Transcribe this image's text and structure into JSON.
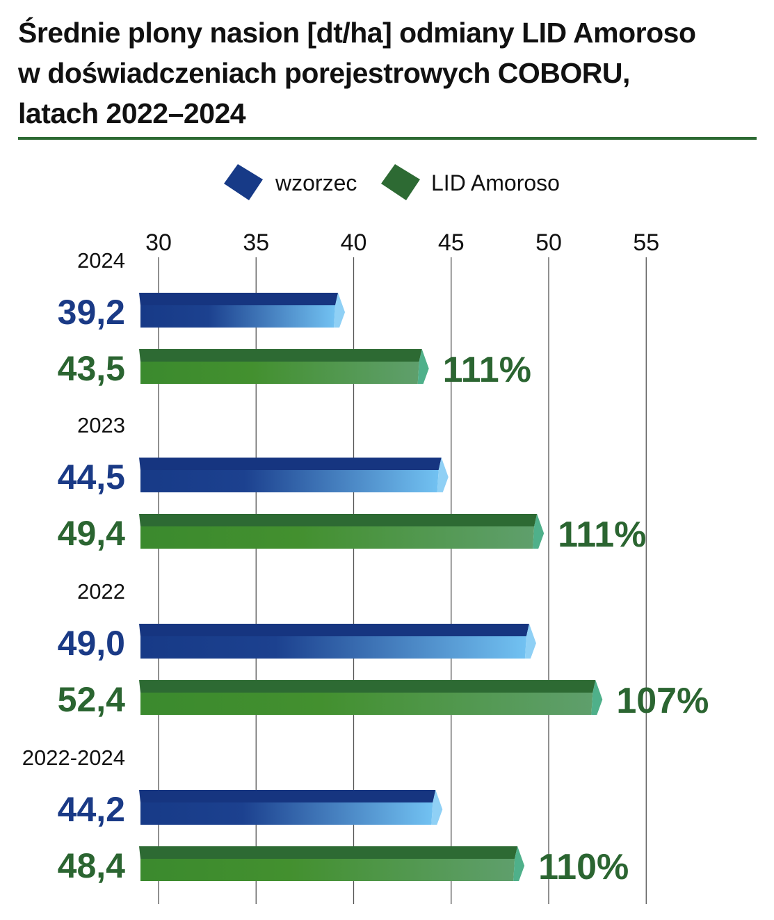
{
  "title_lines": [
    "Średnie plony nasion [dt/ha] odmiany LID Amoroso",
    "w doświadczeniach porejestrowych COBORU,",
    "latach 2022–2024"
  ],
  "colors": {
    "wzorzec": "#173a87",
    "wzorzec_light": "#6fbcef",
    "amoroso": "#3b8a2e",
    "amoroso_light": "#5da06a",
    "wzorzec_text": "#1a3a86",
    "amoroso_text": "#2b6531",
    "rule": "#2d6a33"
  },
  "chart_data": {
    "type": "bar",
    "orientation": "horizontal",
    "title": "Średnie plony nasion [dt/ha] odmiany LID Amoroso w doświadczeniach porejestrowych COBORU, latach 2022–2024",
    "categories": [
      "2024",
      "2023",
      "2022",
      "2022-2024"
    ],
    "series": [
      {
        "name": "wzorzec",
        "values": [
          39.2,
          44.5,
          49.0,
          44.2
        ],
        "labels": [
          "39,2",
          "44,5",
          "49,0",
          "44,2"
        ]
      },
      {
        "name": "LID Amoroso",
        "values": [
          43.5,
          49.4,
          52.4,
          48.4
        ],
        "labels": [
          "43,5",
          "49,4",
          "52,4",
          "48,4"
        ]
      }
    ],
    "percent_labels": [
      "111%",
      "111%",
      "107%",
      "110%"
    ],
    "xticks": [
      30,
      35,
      40,
      45,
      50,
      55
    ],
    "xlim": [
      29,
      59
    ],
    "grid": true,
    "legend_position": "top-center"
  }
}
